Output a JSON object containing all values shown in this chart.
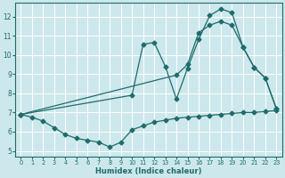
{
  "xlabel": "Humidex (Indice chaleur)",
  "bg_color": "#cde8ec",
  "line_color": "#1e6b6b",
  "grid_color": "#ffffff",
  "xlim": [
    -0.5,
    23.5
  ],
  "ylim": [
    4.7,
    12.7
  ],
  "yticks": [
    5,
    6,
    7,
    8,
    9,
    10,
    11,
    12
  ],
  "xticks": [
    0,
    1,
    2,
    3,
    4,
    5,
    6,
    7,
    8,
    9,
    10,
    11,
    12,
    13,
    14,
    15,
    16,
    17,
    18,
    19,
    20,
    21,
    22,
    23
  ],
  "line1_x": [
    0,
    1,
    2,
    3,
    4,
    5,
    6,
    7,
    8,
    9,
    10,
    11,
    12,
    13,
    14,
    15,
    16,
    17,
    18,
    19,
    20,
    21,
    22,
    23
  ],
  "line1_y": [
    6.9,
    6.75,
    6.55,
    6.2,
    5.85,
    5.65,
    5.55,
    5.45,
    5.2,
    5.45,
    6.1,
    6.3,
    6.5,
    6.6,
    6.7,
    6.75,
    6.8,
    6.85,
    6.9,
    6.95,
    7.0,
    7.0,
    7.05,
    7.1
  ],
  "line2_x": [
    0,
    10,
    11,
    12,
    13,
    14,
    15,
    16,
    17,
    18,
    19,
    20,
    21,
    22,
    23
  ],
  "line2_y": [
    6.9,
    7.9,
    10.55,
    10.65,
    9.4,
    7.7,
    9.3,
    10.8,
    12.05,
    12.4,
    12.2,
    10.4,
    9.35,
    8.8,
    7.2
  ],
  "line3_x": [
    0,
    14,
    15,
    16,
    17,
    18,
    19,
    20,
    21,
    22,
    23
  ],
  "line3_y": [
    6.9,
    8.95,
    9.5,
    11.15,
    11.55,
    11.75,
    11.55,
    10.4,
    9.35,
    8.8,
    7.2
  ]
}
